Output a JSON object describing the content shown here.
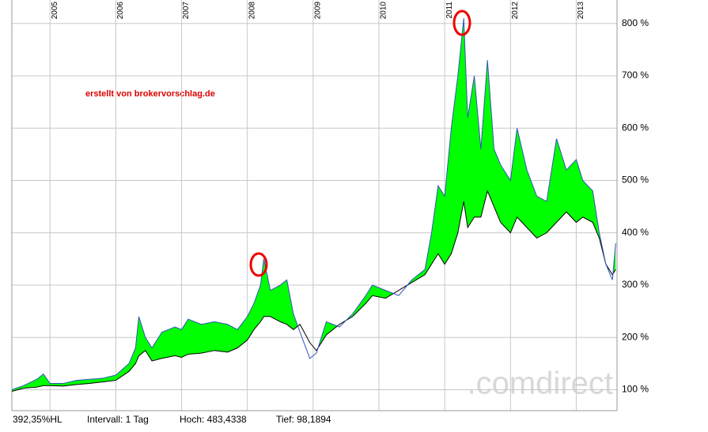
{
  "chart_data": {
    "type": "line",
    "annotation": "erstellt von brokervorschlag.de",
    "watermark": ".comdirect",
    "footer": [
      "392,35%HL",
      "Intervall: 1 Tag",
      "Hoch: 483,4338",
      "Tief: 98,1894"
    ],
    "x": [
      2004.42,
      2004.6,
      2004.8,
      2004.9,
      2005.0,
      2005.2,
      2005.4,
      2005.6,
      2005.8,
      2006.0,
      2006.2,
      2006.3,
      2006.35,
      2006.45,
      2006.55,
      2006.7,
      2006.9,
      2007.0,
      2007.1,
      2007.3,
      2007.5,
      2007.7,
      2007.85,
      2008.0,
      2008.1,
      2008.2,
      2008.25,
      2008.35,
      2008.5,
      2008.6,
      2008.7,
      2008.8,
      2008.95,
      2009.05,
      2009.2,
      2009.4,
      2009.6,
      2009.8,
      2009.9,
      2010.1,
      2010.3,
      2010.5,
      2010.7,
      2010.8,
      2010.9,
      2011.0,
      2011.1,
      2011.2,
      2011.29,
      2011.35,
      2011.45,
      2011.55,
      2011.65,
      2011.75,
      2011.85,
      2012.0,
      2012.1,
      2012.25,
      2012.4,
      2012.55,
      2012.7,
      2012.85,
      2013.0,
      2013.1,
      2013.25,
      2013.35,
      2013.45,
      2013.55,
      2013.6
    ],
    "series": [
      {
        "color": "#3355bb",
        "values": [
          100,
          108,
          120,
          130,
          112,
          112,
          118,
          120,
          122,
          128,
          150,
          180,
          240,
          200,
          180,
          210,
          220,
          215,
          235,
          225,
          230,
          225,
          215,
          240,
          265,
          300,
          350,
          290,
          300,
          310,
          245,
          210,
          160,
          170,
          230,
          220,
          245,
          280,
          300,
          290,
          280,
          310,
          330,
          400,
          490,
          470,
          600,
          700,
          810,
          620,
          700,
          560,
          730,
          560,
          530,
          500,
          600,
          520,
          470,
          460,
          580,
          520,
          540,
          500,
          480,
          400,
          340,
          310,
          380
        ]
      },
      {
        "color": "#000000",
        "values": [
          97,
          103,
          105,
          108,
          108,
          107,
          110,
          112,
          115,
          118,
          135,
          150,
          165,
          175,
          155,
          160,
          165,
          162,
          168,
          170,
          175,
          172,
          180,
          195,
          215,
          230,
          240,
          240,
          230,
          225,
          215,
          225,
          190,
          175,
          205,
          225,
          240,
          265,
          280,
          275,
          290,
          305,
          320,
          340,
          360,
          340,
          360,
          400,
          460,
          410,
          430,
          430,
          480,
          450,
          420,
          400,
          430,
          410,
          390,
          400,
          420,
          440,
          420,
          430,
          420,
          390,
          340,
          320,
          330
        ]
      }
    ],
    "fill_between_color": "#00ff00",
    "xlim": [
      2004.42,
      2013.62
    ],
    "xticks": [
      2005,
      2006,
      2007,
      2008,
      2009,
      2010,
      2011,
      2012,
      2013
    ],
    "ylim": [
      60,
      845
    ],
    "yticks": [
      {
        "value": 100,
        "label": "100 %"
      },
      {
        "value": 200,
        "label": "200 %"
      },
      {
        "value": 300,
        "label": "300 %"
      },
      {
        "value": 400,
        "label": "400 %"
      },
      {
        "value": 500,
        "label": "500 %"
      },
      {
        "value": 600,
        "label": "600 %"
      },
      {
        "value": 700,
        "label": "700 %"
      },
      {
        "value": 800,
        "label": "800 %"
      }
    ],
    "grid": true
  }
}
